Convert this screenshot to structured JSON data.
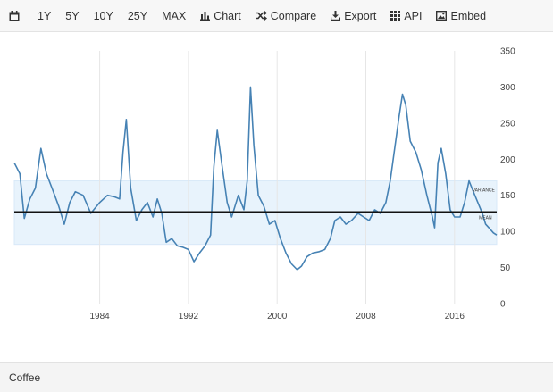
{
  "toolbar": {
    "calendar_icon": "calendar-icon",
    "range_1y": "1Y",
    "range_5y": "5Y",
    "range_10y": "10Y",
    "range_25y": "25Y",
    "range_max": "MAX",
    "chart_label": "Chart",
    "compare_label": "Compare",
    "export_label": "Export",
    "api_label": "API",
    "embed_label": "Embed"
  },
  "footer": {
    "label": "Coffee"
  },
  "colors": {
    "series": "#4682b4",
    "band": "#e8f3fc",
    "mean_line": "#111111"
  },
  "chart_data": {
    "type": "line",
    "title": "",
    "xlabel": "",
    "ylabel": "",
    "xlim": [
      1976.3,
      2019.8
    ],
    "ylim": [
      0,
      350
    ],
    "x_ticks": [
      1984,
      1992,
      2000,
      2008,
      2016
    ],
    "y_ticks": [
      0,
      50,
      100,
      150,
      200,
      250,
      300,
      350
    ],
    "band": [
      82,
      170
    ],
    "mean_line": 127,
    "annotations": [
      "VARIANCE",
      "MEAN"
    ],
    "grid": "vertical",
    "series": [
      {
        "x": [
          1976.3,
          1976.8,
          1977.2,
          1977.7,
          1978.2,
          1978.7,
          1979.2,
          1979.7,
          1980.3,
          1980.8,
          1981.3,
          1981.8,
          1982.5,
          1983.2,
          1984.0,
          1984.7,
          1985.3,
          1985.8,
          1986.1,
          1986.4,
          1986.8,
          1987.3,
          1987.8,
          1988.3,
          1988.8,
          1989.2,
          1989.6,
          1990.0,
          1990.5,
          1991.0,
          1991.5,
          1992.0,
          1992.5,
          1993.0,
          1993.5,
          1994.0,
          1994.3,
          1994.6,
          1995.0,
          1995.5,
          1995.9,
          1996.5,
          1997.0,
          1997.3,
          1997.6,
          1997.9,
          1998.3,
          1998.8,
          1999.3,
          1999.8,
          2000.3,
          2000.8,
          2001.3,
          2001.8,
          2002.2,
          2002.7,
          2003.2,
          2003.8,
          2004.3,
          2004.8,
          2005.2,
          2005.7,
          2006.2,
          2006.7,
          2007.3,
          2007.8,
          2008.3,
          2008.8,
          2009.3,
          2009.8,
          2010.2,
          2010.6,
          2011.0,
          2011.3,
          2011.6,
          2012.0,
          2012.5,
          2013.0,
          2013.5,
          2014.0,
          2014.2,
          2014.5,
          2014.8,
          2015.2,
          2015.6,
          2016.0,
          2016.5,
          2016.9,
          2017.3,
          2017.7,
          2018.1,
          2018.5,
          2018.8,
          2019.1,
          2019.5,
          2019.8
        ],
        "values": [
          195,
          180,
          118,
          145,
          160,
          215,
          180,
          160,
          135,
          110,
          140,
          155,
          150,
          125,
          140,
          150,
          148,
          145,
          210,
          255,
          160,
          115,
          130,
          140,
          120,
          145,
          125,
          85,
          90,
          80,
          78,
          75,
          58,
          70,
          80,
          95,
          190,
          240,
          195,
          140,
          120,
          150,
          130,
          170,
          300,
          220,
          150,
          135,
          110,
          115,
          90,
          70,
          55,
          47,
          52,
          65,
          70,
          72,
          75,
          90,
          115,
          120,
          110,
          115,
          125,
          120,
          115,
          130,
          125,
          140,
          170,
          215,
          260,
          290,
          275,
          225,
          210,
          185,
          150,
          120,
          105,
          195,
          215,
          180,
          130,
          120,
          120,
          140,
          170,
          155,
          140,
          125,
          110,
          105,
          98,
          95
        ]
      }
    ]
  }
}
